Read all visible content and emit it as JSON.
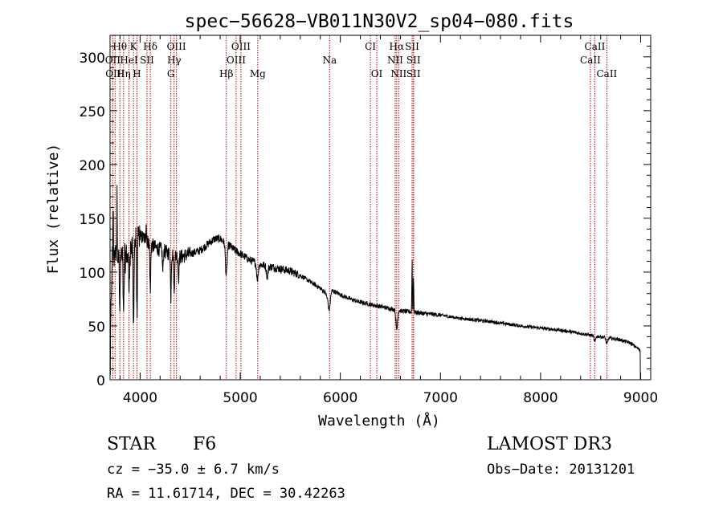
{
  "chart_data": {
    "type": "line",
    "title": "spec−56628−VB011N30V2_sp04−080.fits",
    "xlabel": "Wavelength (Å)",
    "ylabel": "Flux (relative)",
    "xlim": [
      3700,
      9100
    ],
    "ylim": [
      0,
      320
    ],
    "x_ticks": [
      4000,
      5000,
      6000,
      7000,
      8000,
      9000
    ],
    "y_ticks": [
      0,
      50,
      100,
      150,
      200,
      250,
      300
    ],
    "spectrum_anchors": [
      [
        3700,
        20
      ],
      [
        3720,
        110
      ],
      [
        3760,
        118
      ],
      [
        3800,
        115
      ],
      [
        3850,
        112
      ],
      [
        3900,
        120
      ],
      [
        3950,
        126
      ],
      [
        4000,
        133
      ],
      [
        4050,
        131
      ],
      [
        4100,
        126
      ],
      [
        4150,
        123
      ],
      [
        4200,
        121
      ],
      [
        4300,
        117
      ],
      [
        4400,
        114
      ],
      [
        4500,
        117
      ],
      [
        4600,
        120
      ],
      [
        4700,
        128
      ],
      [
        4750,
        131
      ],
      [
        4800,
        131
      ],
      [
        4850,
        127
      ],
      [
        4900,
        124
      ],
      [
        4950,
        120
      ],
      [
        5000,
        117
      ],
      [
        5100,
        111
      ],
      [
        5200,
        107
      ],
      [
        5300,
        105
      ],
      [
        5400,
        103
      ],
      [
        5500,
        101
      ],
      [
        5600,
        97
      ],
      [
        5700,
        91
      ],
      [
        5800,
        85
      ],
      [
        5850,
        81
      ],
      [
        5880,
        73
      ],
      [
        5920,
        83
      ],
      [
        6000,
        79
      ],
      [
        6100,
        75
      ],
      [
        6200,
        72
      ],
      [
        6300,
        70
      ],
      [
        6400,
        68
      ],
      [
        6500,
        66
      ],
      [
        6600,
        64
      ],
      [
        6700,
        63
      ],
      [
        6800,
        62
      ],
      [
        7000,
        60
      ],
      [
        7200,
        57
      ],
      [
        7500,
        54
      ],
      [
        7800,
        50
      ],
      [
        8000,
        48
      ],
      [
        8200,
        46
      ],
      [
        8400,
        43
      ],
      [
        8600,
        40
      ],
      [
        8800,
        37
      ],
      [
        8900,
        34
      ],
      [
        9000,
        27
      ]
    ],
    "absorption_features": [
      [
        3797,
        50
      ],
      [
        3835,
        55
      ],
      [
        3889,
        38
      ],
      [
        3934,
        80
      ],
      [
        3969,
        70
      ],
      [
        4102,
        45
      ],
      [
        4227,
        20
      ],
      [
        4307,
        40
      ],
      [
        4340,
        38
      ],
      [
        4384,
        20
      ],
      [
        4861,
        30
      ],
      [
        5172,
        15
      ],
      [
        5270,
        10
      ],
      [
        5890,
        10
      ],
      [
        6563,
        18
      ],
      [
        8542,
        6
      ],
      [
        8662,
        6
      ]
    ],
    "emission_features": [
      [
        3770,
        55
      ],
      [
        3730,
        50
      ],
      [
        4060,
        18
      ],
      [
        6717,
        50
      ],
      [
        6731,
        35
      ]
    ],
    "line_markers": [
      {
        "label": "Hθ",
        "wavelength": 3798,
        "row": 1
      },
      {
        "label": "K",
        "wavelength": 3934,
        "row": 1
      },
      {
        "label": "Hδ",
        "wavelength": 4102,
        "row": 1
      },
      {
        "label": "OIII",
        "wavelength": 4363,
        "row": 1
      },
      {
        "label": "OIII",
        "wavelength": 5007,
        "row": 1
      },
      {
        "label": "CI",
        "wavelength": 6300,
        "row": 1
      },
      {
        "label": "Hα",
        "wavelength": 6563,
        "row": 1
      },
      {
        "label": "SII",
        "wavelength": 6717,
        "row": 1
      },
      {
        "label": "CaII",
        "wavelength": 8542,
        "row": 1
      },
      {
        "label": "OII",
        "wavelength": 3727,
        "row": 2
      },
      {
        "label": "HeI",
        "wavelength": 3889,
        "row": 2
      },
      {
        "label": "SII",
        "wavelength": 4069,
        "row": 2
      },
      {
        "label": "Hγ",
        "wavelength": 4340,
        "row": 2
      },
      {
        "label": "OIII",
        "wavelength": 4959,
        "row": 2
      },
      {
        "label": "Na",
        "wavelength": 5893,
        "row": 2
      },
      {
        "label": "NII",
        "wavelength": 6548,
        "row": 2
      },
      {
        "label": "SII",
        "wavelength": 6731,
        "row": 2
      },
      {
        "label": "CaII",
        "wavelength": 8498,
        "row": 2
      },
      {
        "label": "OIII",
        "wavelength": 3750,
        "row": 3
      },
      {
        "label": "Hη",
        "wavelength": 3835,
        "row": 3
      },
      {
        "label": "H",
        "wavelength": 3969,
        "row": 3
      },
      {
        "label": "G",
        "wavelength": 4307,
        "row": 3
      },
      {
        "label": "Hβ",
        "wavelength": 4861,
        "row": 3
      },
      {
        "label": "Mg",
        "wavelength": 5175,
        "row": 3
      },
      {
        "label": "OI",
        "wavelength": 6364,
        "row": 3
      },
      {
        "label": "NII",
        "wavelength": 6583,
        "row": 3
      },
      {
        "label": "SII",
        "wavelength": 6731,
        "row": 3
      },
      {
        "label": "CaII",
        "wavelength": 8662,
        "row": 3
      }
    ]
  },
  "footer": {
    "object_class": "STAR",
    "subclass": "F6",
    "velocity": "cz = −35.0 ± 6.7 km/s",
    "coordinates": "RA =  11.61714, DEC =  30.42263",
    "survey": "LAMOST DR3",
    "obs_date": "Obs−Date: 20131201"
  },
  "colors": {
    "marker_line": "#c00000",
    "axes": "#000000",
    "spectrum": "#000000"
  }
}
